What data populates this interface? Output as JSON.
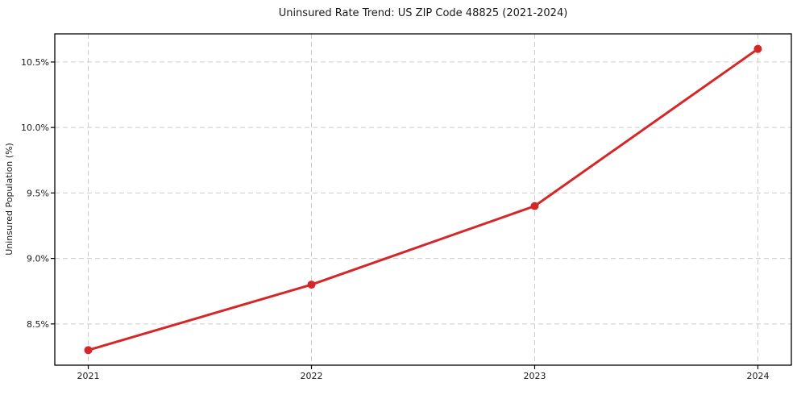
{
  "chart_data": {
    "type": "line",
    "title": "Uninsured Rate Trend: US ZIP Code 48825 (2021-2024)",
    "xlabel": "",
    "ylabel": "Uninsured Population (%)",
    "x": [
      2021,
      2022,
      2023,
      2024
    ],
    "values": [
      8.3,
      8.8,
      9.4,
      10.6
    ],
    "xlim": [
      2020.85,
      2024.15
    ],
    "ylim": [
      8.185,
      10.715
    ],
    "xticks": {
      "values": [
        2021,
        2022,
        2023,
        2024
      ],
      "labels": [
        "2021",
        "2022",
        "2023",
        "2024"
      ]
    },
    "yticks": {
      "values": [
        8.5,
        9.0,
        9.5,
        10.0,
        10.5
      ],
      "labels": [
        "8.5%",
        "9.0%",
        "9.5%",
        "10.0%",
        "10.5%"
      ]
    },
    "grid": true,
    "grid_style": "dashed",
    "legend": "none",
    "colors": {
      "line": "#d62728",
      "marker": "#d62728",
      "grid": "#cccccc",
      "spine": "#000000",
      "text": "#1a1a1a",
      "background": "#ffffff"
    }
  }
}
